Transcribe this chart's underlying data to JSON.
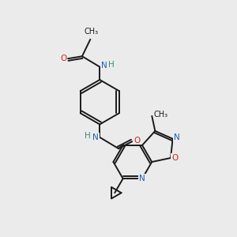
{
  "bg_color": "#ebebeb",
  "bond_color": "#1a1a1a",
  "bond_width": 1.4,
  "atom_colors": {
    "N": "#1a5fba",
    "O": "#dd2020",
    "H": "#3a8a7a",
    "C": "#1a1a1a"
  },
  "font_size": 7.5
}
